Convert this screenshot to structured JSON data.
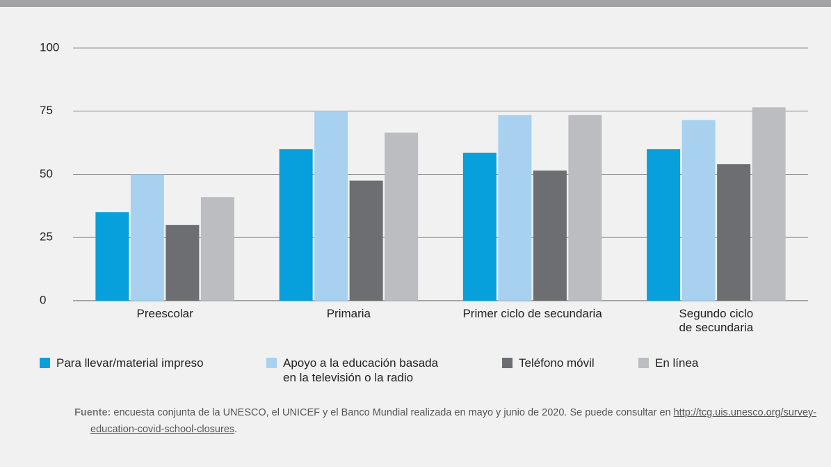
{
  "chart_data": {
    "type": "bar",
    "categories": [
      "Preescolar",
      "Primaria",
      "Primer ciclo de secundaria",
      "Segundo ciclo\nde secundaria"
    ],
    "series": [
      {
        "name": "Para llevar/material impreso",
        "color": "#079fdc",
        "values": [
          35,
          60,
          58.5,
          60
        ]
      },
      {
        "name": "Apoyo a la educación basada\nen la televisión o la radio",
        "color": "#a8d1f0",
        "values": [
          50,
          75,
          73.5,
          71.5
        ]
      },
      {
        "name": "Teléfono móvil",
        "color": "#6d6e71",
        "values": [
          30,
          47.5,
          51.5,
          54
        ]
      },
      {
        "name": "En línea",
        "color": "#bcbdc0",
        "values": [
          41,
          66.5,
          73.5,
          76.5
        ]
      }
    ],
    "ylim": [
      0,
      100
    ],
    "yticks": [
      0,
      25,
      50,
      75,
      100
    ],
    "grid": true
  },
  "note": {
    "label": "Fuente:",
    "text": "encuesta conjunta de la UNESCO, el UNICEF y el Banco Mundial realizada en mayo y junio de 2020. Se puede consultar en",
    "url": "http://tcg.uis.unesco.org/survey-education-covid-school-closures",
    "end": "."
  }
}
